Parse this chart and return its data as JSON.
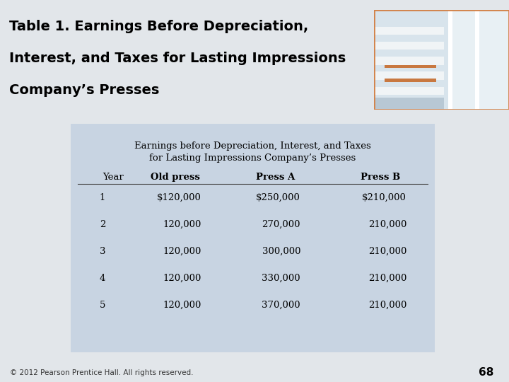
{
  "slide_title_line1": "Table 1. Earnings Before Depreciation,",
  "slide_title_line2": "Interest, and Taxes for Lasting Impressions",
  "slide_title_line3": "Company’s Presses",
  "slide_bg_color": "#E2E6EA",
  "header_white_bg": "#FFFFFF",
  "header_orange_top": "#D2834A",
  "table_bg_color": "#C8D4E2",
  "header_title_line1": "Earnings before Depreciation, Interest, and Taxes",
  "header_title_line2": "for Lasting Impressions Company’s Presses",
  "col_headers": [
    "Year",
    "Old press",
    "Press A",
    "Press B"
  ],
  "rows": [
    [
      "1",
      "$120,000",
      "$250,000",
      "$210,000"
    ],
    [
      "2",
      "120,000",
      "270,000",
      "210,000"
    ],
    [
      "3",
      "120,000",
      "300,000",
      "210,000"
    ],
    [
      "4",
      "120,000",
      "330,000",
      "210,000"
    ],
    [
      "5",
      "120,000",
      "370,000",
      "210,000"
    ]
  ],
  "footer_text": "© 2012 Pearson Prentice Hall. All rights reserved.",
  "page_number": "68"
}
